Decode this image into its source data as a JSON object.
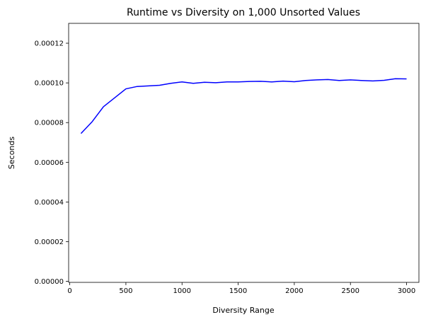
{
  "chart_data": {
    "type": "line",
    "title": "Runtime vs Diversity on 1,000 Unsorted Values",
    "xlabel": "Diversity Range",
    "ylabel": "Seconds",
    "xlim": [
      -10,
      3110
    ],
    "ylim": [
      -5e-07,
      0.00013
    ],
    "x_ticks": [
      0,
      500,
      1000,
      1500,
      2000,
      2500,
      3000
    ],
    "x_tick_labels": [
      "0",
      "500",
      "1000",
      "1500",
      "2000",
      "2500",
      "3000"
    ],
    "y_ticks": [
      0,
      2e-05,
      4e-05,
      6e-05,
      8e-05,
      0.0001,
      0.00012
    ],
    "y_tick_labels": [
      "0.00000",
      "0.00002",
      "0.00004",
      "0.00006",
      "0.00008",
      "0.00010",
      "0.00012"
    ],
    "grid": false,
    "line_color": "#0000ff",
    "series": [
      {
        "x": [
          100,
          200,
          300,
          400,
          500,
          600,
          700,
          800,
          900,
          1000,
          1100,
          1200,
          1300,
          1400,
          1500,
          1600,
          1700,
          1800,
          1900,
          2000,
          2100,
          2200,
          2300,
          2400,
          2500,
          2600,
          2700,
          2800,
          2900,
          3000
        ],
        "values": [
          7.45e-05,
          8.05e-05,
          8.8e-05,
          9.25e-05,
          9.7e-05,
          9.82e-05,
          9.85e-05,
          9.88e-05,
          9.98e-05,
          0.0001005,
          9.98e-05,
          0.0001003,
          0.0001001,
          0.0001005,
          0.0001005,
          0.0001007,
          0.0001008,
          0.0001005,
          0.0001009,
          0.0001006,
          0.0001012,
          0.0001015,
          0.0001017,
          0.0001012,
          0.0001015,
          0.0001012,
          0.000101,
          0.0001013,
          0.0001021,
          0.000102
        ]
      }
    ]
  }
}
